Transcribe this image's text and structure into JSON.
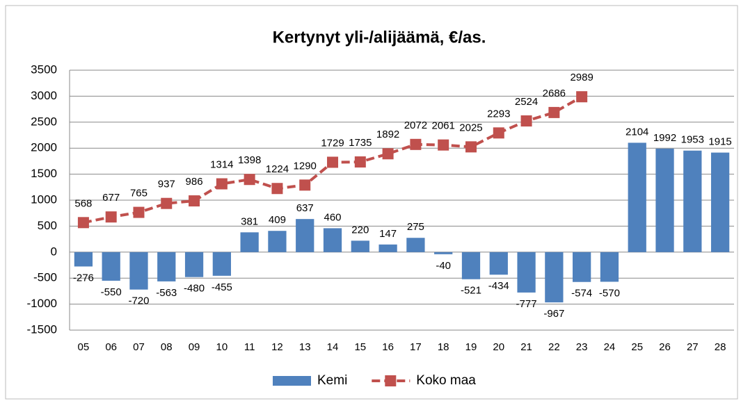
{
  "chart_data": {
    "type": "bar",
    "title": "Kertynyt yli-/alijäämä, €/as.",
    "categories": [
      "05",
      "06",
      "07",
      "08",
      "09",
      "10",
      "11",
      "12",
      "13",
      "14",
      "15",
      "16",
      "17",
      "18",
      "19",
      "20",
      "21",
      "22",
      "23",
      "24",
      "25",
      "26",
      "27",
      "28"
    ],
    "series": [
      {
        "name": "Kemi",
        "type": "bar",
        "color": "#4f81bd",
        "values": [
          -276,
          -550,
          -720,
          -563,
          -480,
          -455,
          381,
          409,
          637,
          460,
          220,
          147,
          275,
          -40,
          -521,
          -434,
          -777,
          -967,
          -574,
          -570,
          2104,
          1992,
          1953,
          1915
        ]
      },
      {
        "name": "Koko maa",
        "type": "line",
        "color": "#c0504d",
        "values": [
          568,
          677,
          765,
          937,
          986,
          1314,
          1398,
          1224,
          1290,
          1729,
          1735,
          1892,
          2072,
          2061,
          2025,
          2293,
          2524,
          2686,
          2989,
          null,
          null,
          null,
          null,
          null
        ]
      }
    ],
    "ylim": [
      -1500,
      3500
    ],
    "yticks": [
      3500,
      3000,
      2500,
      2000,
      1500,
      1000,
      500,
      0,
      -500,
      -1000,
      -1500
    ],
    "grid": true,
    "legend": "bottom"
  }
}
